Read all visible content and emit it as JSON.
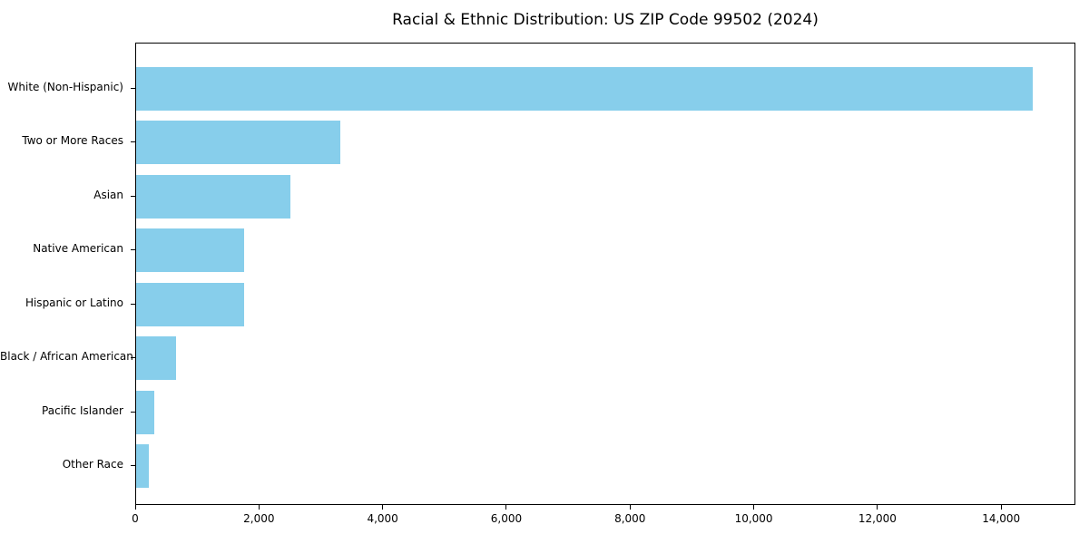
{
  "chart_data": {
    "type": "bar",
    "orientation": "horizontal",
    "title": "Racial & Ethnic Distribution: US ZIP Code 99502 (2024)",
    "categories": [
      "White (Non-Hispanic)",
      "Two or More Races",
      "Asian",
      "Native American",
      "Hispanic or Latino",
      "Black / African American",
      "Pacific Islander",
      "Other Race"
    ],
    "values": [
      14500,
      3300,
      2500,
      1750,
      1750,
      650,
      300,
      200
    ],
    "xlabel": "",
    "ylabel": "",
    "xlim": [
      0,
      15200
    ],
    "x_ticks": [
      0,
      2000,
      4000,
      6000,
      8000,
      10000,
      12000,
      14000
    ],
    "x_tick_labels": [
      "0",
      "2,000",
      "4,000",
      "6,000",
      "8,000",
      "10,000",
      "12,000",
      "14,000"
    ],
    "bar_color": "#87CEEB",
    "background_color": "#ffffff",
    "spine_color": "#000000",
    "grid": false,
    "legend": null
  }
}
